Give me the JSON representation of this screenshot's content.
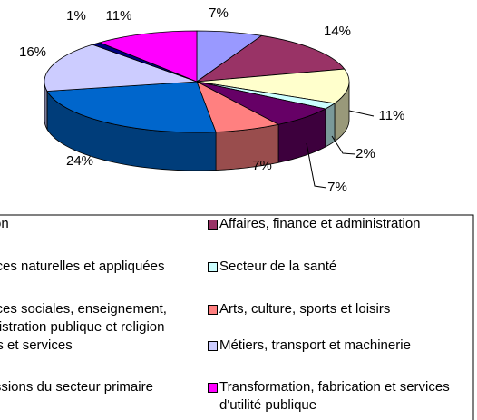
{
  "chart_data": {
    "type": "pie",
    "categories": [
      "Gestion",
      "Affaires, finance et administration",
      "Sciences naturelles et appliquées",
      "Secteur de la santé",
      "Sciences sociales, enseignement, administration publique et religion",
      "Arts, culture, sports et loisirs",
      "Ventes et services",
      "Métiers, transport et machinerie",
      "Professions du secteur primaire",
      "Transformation, fabrication et services d'utilité publique"
    ],
    "values": [
      7,
      14,
      11,
      2,
      7,
      7,
      24,
      16,
      1,
      11
    ],
    "value_labels": [
      "7%",
      "14%",
      "11%",
      "2%",
      "7%",
      "7%",
      "24%",
      "16%",
      "1%",
      "11%"
    ],
    "colors": [
      "#9999ff",
      "#993366",
      "#ffffcc",
      "#ccffff",
      "#660066",
      "#ff8080",
      "#0066cc",
      "#ccccff",
      "#000080",
      "#ff00ff"
    ]
  }
}
